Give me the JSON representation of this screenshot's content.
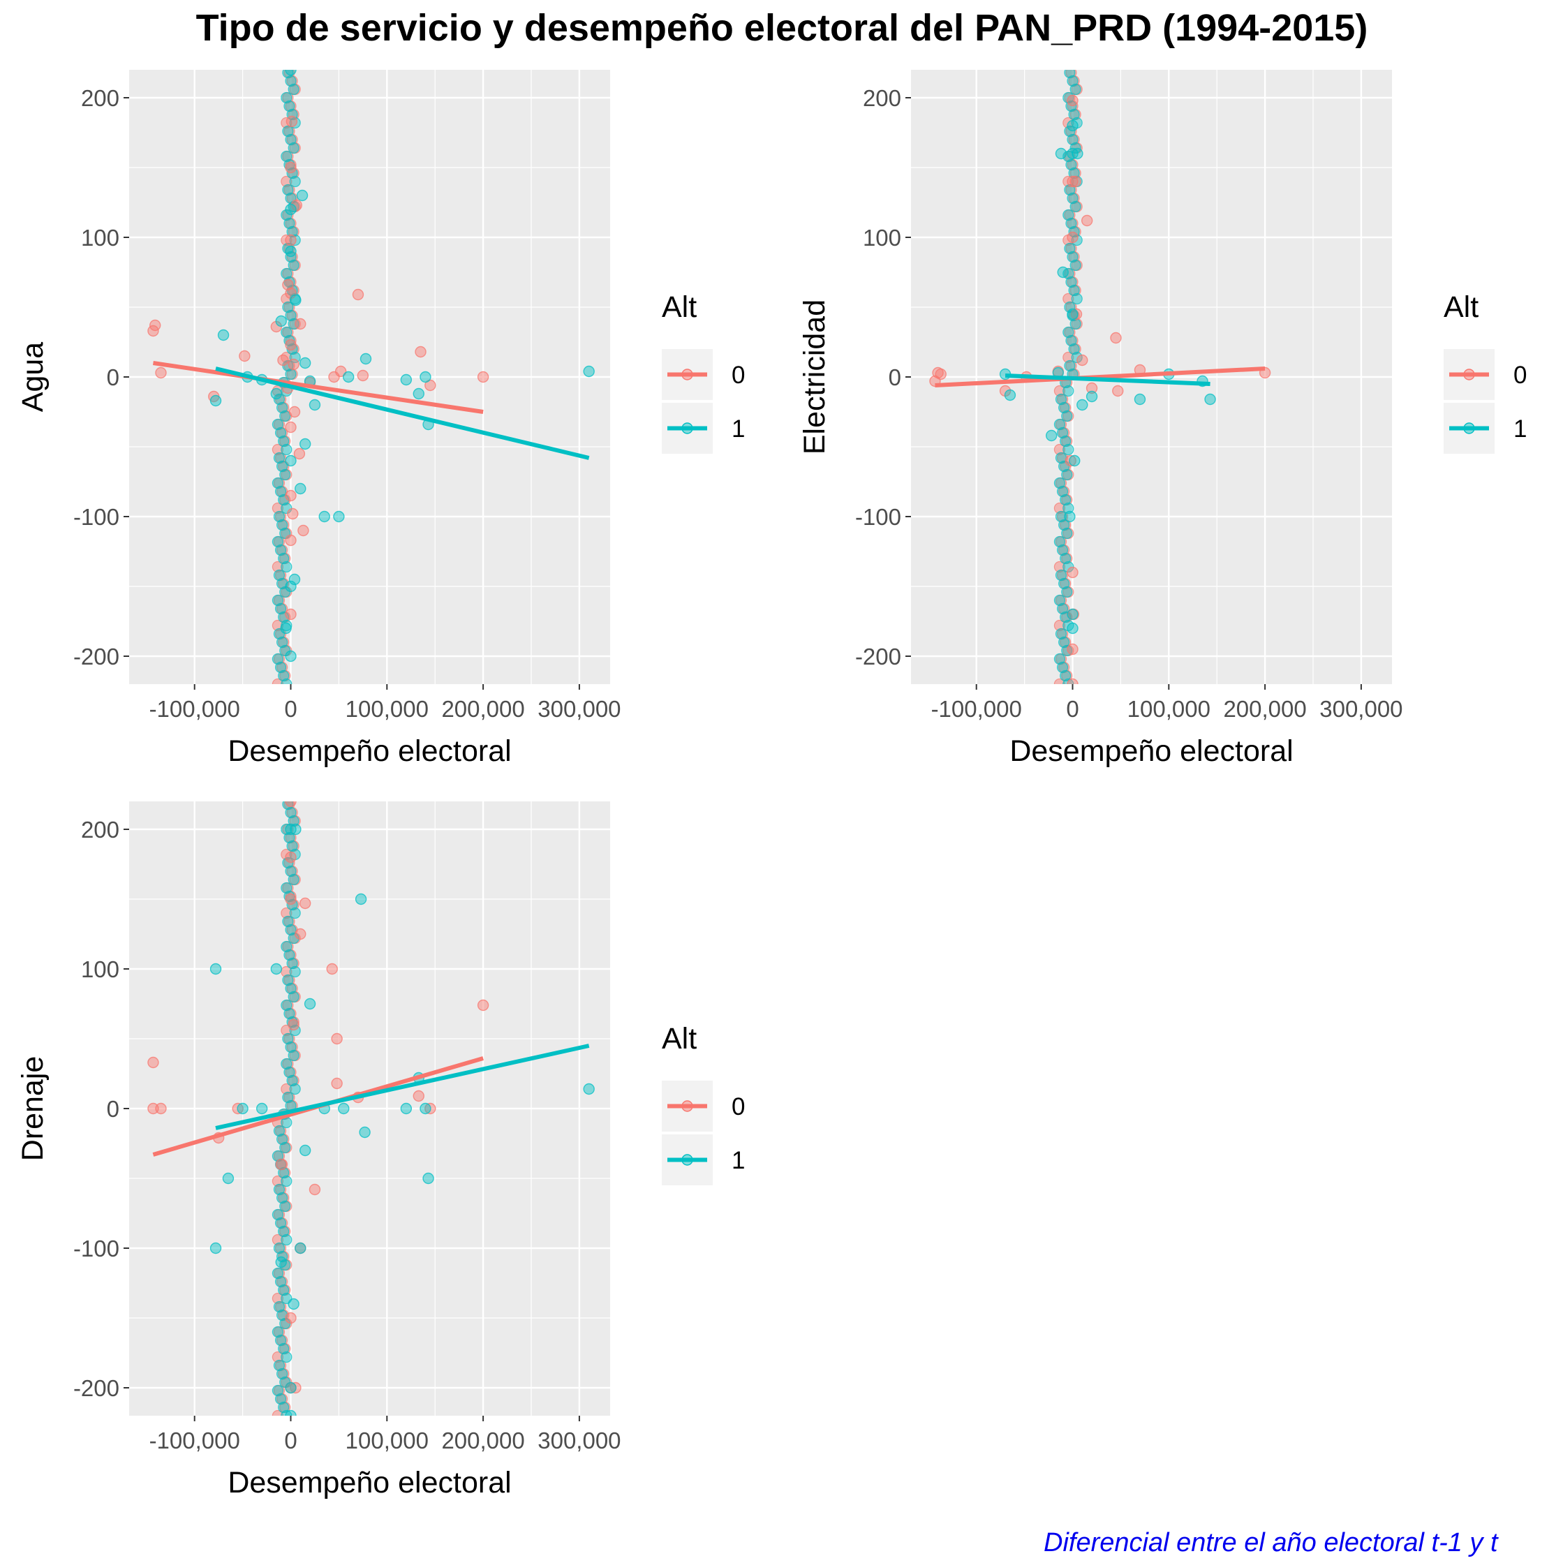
{
  "title": "Tipo de servicio y desempeño electoral del PAN_PRD (1994-2015)",
  "caption": "Diferencial entre el año electoral t-1 y t",
  "colors": {
    "alt0": "#F8766D",
    "alt1": "#00BFC4",
    "panel_bg": "#EBEBEB",
    "grid": "#FFFFFF"
  },
  "legend": {
    "title": "Alt",
    "entries": [
      {
        "label": "0",
        "color": "#F8766D"
      },
      {
        "label": "1",
        "color": "#00BFC4"
      }
    ]
  },
  "chart_data": [
    {
      "type": "scatter",
      "panel": "Agua",
      "xlabel": "Desempeño electoral",
      "ylabel": "Agua",
      "xlim": [
        -168000,
        332000
      ],
      "ylim": [
        -220,
        220
      ],
      "xticks": [
        -100000,
        0,
        100000,
        200000,
        300000
      ],
      "xtick_labels": [
        "-100,000",
        "0",
        "100,000",
        "200,000",
        "300,000"
      ],
      "yticks": [
        -200,
        -100,
        0,
        100,
        200
      ],
      "ytick_labels": [
        "-200",
        "-100",
        "0",
        "100",
        "200"
      ],
      "grid": true,
      "legend_position": "right",
      "series": [
        {
          "name": "0",
          "color": "#F8766D",
          "points": [
            [
              -143000,
              33
            ],
            [
              -141000,
              37
            ],
            [
              -135000,
              3
            ],
            [
              -80000,
              -14
            ],
            [
              -48000,
              15
            ],
            [
              -15000,
              36
            ],
            [
              -8000,
              12
            ],
            [
              -3000,
              -8
            ],
            [
              0,
              60
            ],
            [
              0,
              23
            ],
            [
              0,
              -36
            ],
            [
              0,
              -85
            ],
            [
              0,
              -117
            ],
            [
              0,
              -170
            ],
            [
              0,
              98
            ],
            [
              0,
              150
            ],
            [
              4000,
              -25
            ],
            [
              6000,
              123
            ],
            [
              10000,
              38
            ],
            [
              13000,
              -110
            ],
            [
              20000,
              -4
            ],
            [
              45000,
              0
            ],
            [
              52000,
              4
            ],
            [
              70000,
              59
            ],
            [
              75000,
              1
            ],
            [
              135000,
              18
            ],
            [
              145000,
              -6
            ],
            [
              200000,
              0
            ],
            [
              2000,
              -98
            ],
            [
              1000,
              183
            ],
            [
              -3000,
              66
            ],
            [
              9000,
              -55
            ],
            [
              3000,
              9
            ]
          ],
          "fit": [
            [
              -143000,
              10
            ],
            [
              200000,
              -25
            ]
          ]
        },
        {
          "name": "1",
          "color": "#00BFC4",
          "points": [
            [
              310000,
              4
            ],
            [
              -78000,
              -17
            ],
            [
              -70000,
              30
            ],
            [
              -45000,
              0
            ],
            [
              -30000,
              -2
            ],
            [
              -15000,
              -12
            ],
            [
              0,
              -200
            ],
            [
              0,
              220
            ],
            [
              0,
              120
            ],
            [
              0,
              -150
            ],
            [
              0,
              -60
            ],
            [
              0,
              90
            ],
            [
              5000,
              55
            ],
            [
              10000,
              -80
            ],
            [
              15000,
              10
            ],
            [
              20000,
              -3
            ],
            [
              25000,
              -20
            ],
            [
              35000,
              -100
            ],
            [
              50000,
              -100
            ],
            [
              60000,
              0
            ],
            [
              78000,
              13
            ],
            [
              120000,
              -2
            ],
            [
              133000,
              -12
            ],
            [
              140000,
              0
            ],
            [
              143000,
              -34
            ],
            [
              -5000,
              -180
            ],
            [
              4000,
              -145
            ],
            [
              12000,
              130
            ],
            [
              -10000,
              40
            ],
            [
              15000,
              -48
            ]
          ],
          "fit": [
            [
              -78000,
              6
            ],
            [
              310000,
              -58
            ]
          ]
        }
      ]
    },
    {
      "type": "scatter",
      "panel": "Electricidad",
      "xlabel": "Desempeño electoral",
      "ylabel": "Electricidad",
      "xlim": [
        -168000,
        332000
      ],
      "ylim": [
        -220,
        220
      ],
      "xticks": [
        -100000,
        0,
        100000,
        200000,
        300000
      ],
      "xtick_labels": [
        "-100,000",
        "0",
        "100,000",
        "200,000",
        "300,000"
      ],
      "yticks": [
        -200,
        -100,
        0,
        100,
        200
      ],
      "ytick_labels": [
        "-200",
        "-100",
        "0",
        "100",
        "200"
      ],
      "grid": true,
      "legend_position": "right",
      "series": [
        {
          "name": "0",
          "color": "#F8766D",
          "points": [
            [
              -143000,
              -3
            ],
            [
              -140000,
              3
            ],
            [
              -137000,
              2
            ],
            [
              -70000,
              -10
            ],
            [
              -48000,
              0
            ],
            [
              -15000,
              4
            ],
            [
              0,
              198
            ],
            [
              0,
              140
            ],
            [
              0,
              100
            ],
            [
              0,
              -140
            ],
            [
              0,
              -195
            ],
            [
              0,
              -220
            ],
            [
              3000,
              140
            ],
            [
              10000,
              12
            ],
            [
              15000,
              112
            ],
            [
              20000,
              -8
            ],
            [
              45000,
              28
            ],
            [
              47000,
              -10
            ],
            [
              70000,
              5
            ],
            [
              200000,
              3
            ],
            [
              1000,
              -170
            ],
            [
              -2000,
              -60
            ],
            [
              4000,
              45
            ]
          ],
          "fit": [
            [
              -143000,
              -6
            ],
            [
              200000,
              6
            ]
          ]
        },
        {
          "name": "1",
          "color": "#00BFC4",
          "points": [
            [
              -70000,
              2
            ],
            [
              -65000,
              -13
            ],
            [
              -22000,
              -42
            ],
            [
              -15000,
              3
            ],
            [
              0,
              180
            ],
            [
              0,
              160
            ],
            [
              0,
              -170
            ],
            [
              0,
              -180
            ],
            [
              -10000,
              75
            ],
            [
              -12000,
              160
            ],
            [
              5000,
              160
            ],
            [
              10000,
              -20
            ],
            [
              20000,
              -14
            ],
            [
              70000,
              -16
            ],
            [
              100000,
              2
            ],
            [
              135000,
              -3
            ],
            [
              143000,
              -16
            ],
            [
              0,
              45
            ],
            [
              -3000,
              -100
            ],
            [
              2000,
              -60
            ]
          ],
          "fit": [
            [
              -70000,
              1
            ],
            [
              143000,
              -5
            ]
          ]
        }
      ]
    },
    {
      "type": "scatter",
      "panel": "Drenaje",
      "xlabel": "Desempeño electoral",
      "ylabel": "Drenaje",
      "xlim": [
        -168000,
        332000
      ],
      "ylim": [
        -220,
        220
      ],
      "xticks": [
        -100000,
        0,
        100000,
        200000,
        300000
      ],
      "xtick_labels": [
        "-100,000",
        "0",
        "100,000",
        "200,000",
        "300,000"
      ],
      "yticks": [
        -200,
        -100,
        0,
        100,
        200
      ],
      "ytick_labels": [
        "-200",
        "-100",
        "0",
        "100",
        "200"
      ],
      "grid": true,
      "legend_position": "right",
      "series": [
        {
          "name": "0",
          "color": "#F8766D",
          "points": [
            [
              -143000,
              33
            ],
            [
              -143000,
              0
            ],
            [
              -135000,
              0
            ],
            [
              -75000,
              -21
            ],
            [
              -55000,
              0
            ],
            [
              0,
              220
            ],
            [
              0,
              180
            ],
            [
              0,
              150
            ],
            [
              0,
              -150
            ],
            [
              0,
              -200
            ],
            [
              5000,
              -200
            ],
            [
              10000,
              -100
            ],
            [
              15000,
              147
            ],
            [
              10000,
              125
            ],
            [
              25000,
              -58
            ],
            [
              43000,
              100
            ],
            [
              48000,
              50
            ],
            [
              48000,
              18
            ],
            [
              70000,
              8
            ],
            [
              133000,
              9
            ],
            [
              145000,
              0
            ],
            [
              200000,
              74
            ],
            [
              -10000,
              -40
            ],
            [
              3000,
              60
            ]
          ],
          "fit": [
            [
              -143000,
              -33
            ],
            [
              200000,
              36
            ]
          ]
        },
        {
          "name": "1",
          "color": "#00BFC4",
          "points": [
            [
              -78000,
              100
            ],
            [
              -78000,
              -100
            ],
            [
              -65000,
              -50
            ],
            [
              -50000,
              0
            ],
            [
              -30000,
              0
            ],
            [
              -15000,
              100
            ],
            [
              0,
              200
            ],
            [
              0,
              -200
            ],
            [
              0,
              -220
            ],
            [
              5000,
              200
            ],
            [
              10000,
              -100
            ],
            [
              15000,
              -30
            ],
            [
              35000,
              0
            ],
            [
              55000,
              0
            ],
            [
              73000,
              150
            ],
            [
              77000,
              -17
            ],
            [
              120000,
              0
            ],
            [
              133000,
              22
            ],
            [
              140000,
              0
            ],
            [
              143000,
              -50
            ],
            [
              310000,
              14
            ],
            [
              -10000,
              -110
            ],
            [
              3000,
              -140
            ],
            [
              20000,
              75
            ]
          ],
          "fit": [
            [
              -78000,
              -14
            ],
            [
              310000,
              45
            ]
          ]
        }
      ]
    }
  ]
}
